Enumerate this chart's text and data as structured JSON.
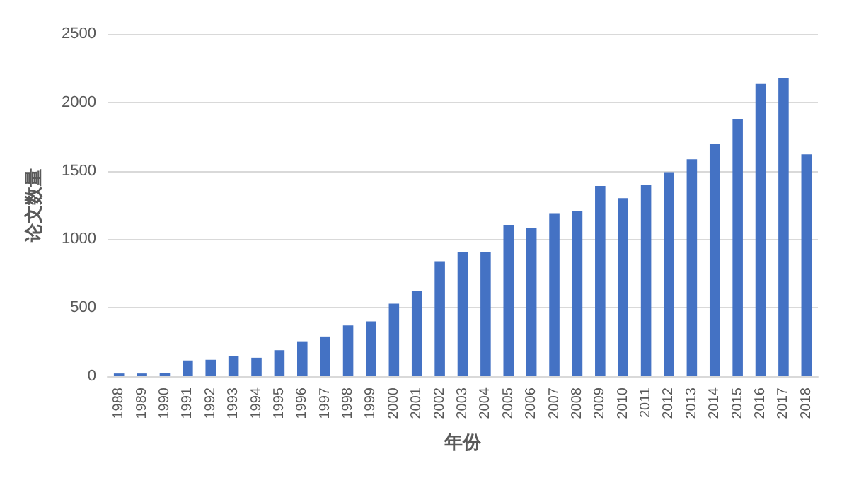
{
  "chart_data": {
    "type": "bar",
    "xlabel": "年份",
    "ylabel": "论文数量",
    "categories": [
      "1988",
      "1989",
      "1990",
      "1991",
      "1992",
      "1993",
      "1994",
      "1995",
      "1996",
      "1997",
      "1998",
      "1999",
      "2000",
      "2001",
      "2002",
      "2003",
      "2004",
      "2005",
      "2006",
      "2007",
      "2008",
      "2009",
      "2010",
      "2011",
      "2012",
      "2013",
      "2014",
      "2015",
      "2016",
      "2017",
      "2018"
    ],
    "values": [
      20,
      20,
      25,
      115,
      120,
      145,
      135,
      190,
      255,
      290,
      370,
      400,
      530,
      625,
      840,
      905,
      905,
      1105,
      1080,
      1190,
      1205,
      1390,
      1300,
      1400,
      1490,
      1585,
      1700,
      1880,
      2135,
      2175,
      1620
    ],
    "color": "#4472c4",
    "ylim": [
      0,
      2500
    ],
    "yticks": [
      0,
      500,
      1000,
      1500,
      2000,
      2500
    ],
    "grid": "y"
  }
}
